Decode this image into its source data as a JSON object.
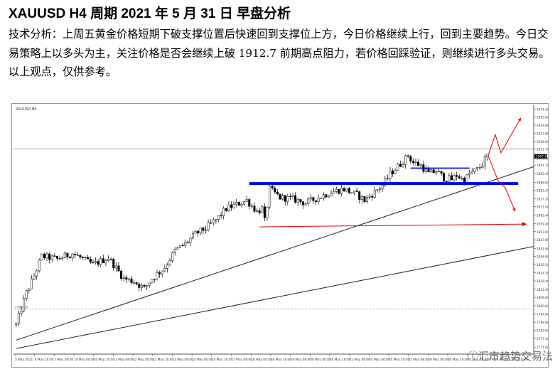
{
  "header": {
    "title": "XAUUSD    H4 周期    2021 年 5 月 31 日  早盘分析"
  },
  "analysis": {
    "paragraph1": "技术分析：上周五黄金价格短期下破支撑位置后快速回到支撑位上方，今日价格继续上行，回到主要趋势。今日交易策略上以多头为主，关注价格是否会继续上破 1912.7 前期高点阻力，若价格回踩验证，则继续进行多头交易。",
    "paragraph2": "以上观点，仅供参考。"
  },
  "watermark": "ⓘ汇市趋势交易法",
  "chart_data": {
    "type": "candlestick",
    "symbol_label": "XAUUSD,H4",
    "y_ticks": [
      "1941.20",
      "1935.60",
      "1929.80",
      "1923.80",
      "1918.00",
      "1912.70",
      "1906.10",
      "1901.20",
      "1895.20",
      "1888.90",
      "1883.20",
      "1877.20",
      "1871.60",
      "1865.40",
      "1859.40",
      "1853.60",
      "1847.80",
      "1841.60",
      "1836.00",
      "1830.20",
      "1824.20",
      "1818.40",
      "1812.40",
      "1806.60",
      "1800.60",
      "1794.80",
      "1788.80",
      "1783.00",
      "1777.20",
      "1771.00"
    ],
    "ylim": [
      1766,
      1944
    ],
    "x_labels": [
      "5 May 2021",
      "6 May 16:00",
      "7 May 08:00",
      "10 May 00:00",
      "10 May 16:00",
      "11 May 08:00",
      "12 May 00:00",
      "12 May 16:00",
      "13 May 08:00",
      "14 May 00:00",
      "14 May 16:00",
      "17 May 08:00",
      "18 May 00:00",
      "18 May 16:00",
      "19 May 08:00",
      "20 May 00:00",
      "20 May 16:00",
      "21 May 08:00",
      "24 May 00:00",
      "24 May 16:00",
      "25 May 08:00",
      "26 May 00:00",
      "26 May 16:00",
      "27 May 08:00",
      "28 May 00:00",
      "28 May 16:00"
    ],
    "current_price": "1907.45",
    "level_resistance": 1912.7,
    "price_waypoints": [
      [
        0,
        1787
      ],
      [
        4,
        1810
      ],
      [
        7,
        1822
      ],
      [
        10,
        1836
      ],
      [
        16,
        1834
      ],
      [
        22,
        1838
      ],
      [
        30,
        1830
      ],
      [
        36,
        1835
      ],
      [
        42,
        1820
      ],
      [
        46,
        1818
      ],
      [
        50,
        1813
      ],
      [
        53,
        1820
      ],
      [
        58,
        1828
      ],
      [
        62,
        1840
      ],
      [
        66,
        1845
      ],
      [
        70,
        1852
      ],
      [
        74,
        1856
      ],
      [
        78,
        1862
      ],
      [
        82,
        1870
      ],
      [
        86,
        1873
      ],
      [
        90,
        1876
      ],
      [
        94,
        1868
      ],
      [
        96,
        1870
      ],
      [
        97,
        1861
      ],
      [
        99,
        1884
      ],
      [
        103,
        1878
      ],
      [
        108,
        1877
      ],
      [
        113,
        1874
      ],
      [
        118,
        1878
      ],
      [
        123,
        1882
      ],
      [
        128,
        1884
      ],
      [
        133,
        1880
      ],
      [
        136,
        1876
      ],
      [
        140,
        1882
      ],
      [
        143,
        1887
      ],
      [
        146,
        1895
      ],
      [
        150,
        1902
      ],
      [
        153,
        1908
      ],
      [
        155,
        1903
      ],
      [
        158,
        1901
      ],
      [
        161,
        1895
      ],
      [
        164,
        1897
      ],
      [
        167,
        1892
      ],
      [
        170,
        1891
      ],
      [
        172,
        1894
      ],
      [
        175,
        1890
      ],
      [
        177,
        1895
      ],
      [
        180,
        1898
      ],
      [
        182,
        1902
      ],
      [
        184,
        1908
      ]
    ],
    "trendlines": [
      {
        "from": [
          0,
          1776
        ],
        "to": [
          202,
          1900
        ]
      },
      {
        "from": [
          0,
          1770
        ],
        "to": [
          202,
          1843
        ]
      }
    ],
    "support_zone": {
      "from": 91,
      "to": 196,
      "price": 1888
    },
    "short_resistance": {
      "from": 154,
      "to": 177,
      "price": 1899
    },
    "red_target_line": {
      "from": 95,
      "to": 199,
      "price_start": 1857,
      "price_end": 1859
    },
    "dashed_level": 1798.2,
    "dashed_level_label": "1798.20"
  }
}
